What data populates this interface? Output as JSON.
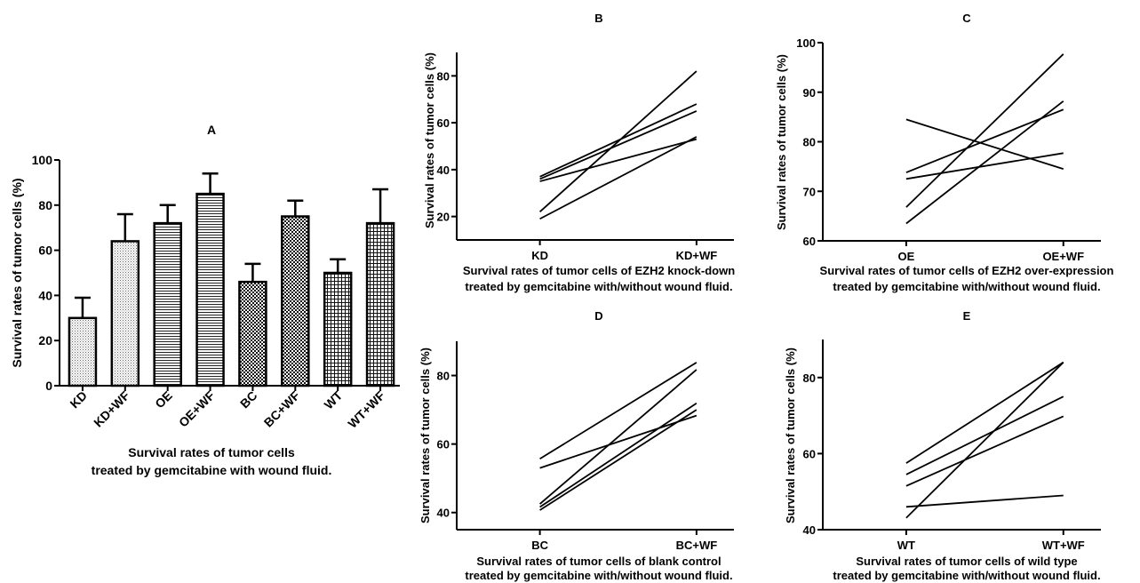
{
  "chart_data": [
    {
      "panel": "A",
      "type": "bar",
      "title": "A",
      "xlabel_lines": [
        "Survival rates of tumor cells",
        "treated by gemcitabine with wound fluid."
      ],
      "ylabel": "Survival rates of tumor cells (%)",
      "ylim": [
        0,
        100
      ],
      "yticks": [
        0,
        20,
        40,
        60,
        80,
        100
      ],
      "categories": [
        "KD",
        "KD+WF",
        "OE",
        "OE+WF",
        "BC",
        "BC+WF",
        "WT",
        "WT+WF"
      ],
      "values": [
        30,
        64,
        72,
        85,
        46,
        75,
        50,
        72
      ],
      "errors": [
        9,
        12,
        8,
        9,
        8,
        7,
        6,
        15
      ],
      "patterns": [
        "dots",
        "dots",
        "hlines",
        "hlines",
        "checker",
        "checker",
        "grid",
        "grid"
      ],
      "grid": false
    },
    {
      "panel": "B",
      "type": "line",
      "title": "B",
      "xlabel_lines": [
        "Survival rates of tumor cells of EZH2 knock-down",
        "treated by gemcitabine with/without wound fluid."
      ],
      "ylabel": "Survival rates of tumor cells (%)",
      "categories": [
        "KD",
        "KD+WF"
      ],
      "ylim": [
        10,
        90
      ],
      "yticks": [
        20,
        40,
        60,
        80
      ],
      "series": [
        {
          "values": [
            37,
            68
          ]
        },
        {
          "values": [
            36,
            65
          ]
        },
        {
          "values": [
            35,
            53
          ]
        },
        {
          "values": [
            22,
            82
          ]
        },
        {
          "values": [
            19,
            54
          ]
        }
      ],
      "grid": false
    },
    {
      "panel": "C",
      "type": "line",
      "title": "C",
      "xlabel_lines": [
        "Survival rates of tumor cells of EZH2 over-expression",
        "treated by gemcitabine with/without wound fluid."
      ],
      "ylabel": "Survival rates of tumor cells (%)",
      "categories": [
        "OE",
        "OE+WF"
      ],
      "ylim": [
        60,
        100
      ],
      "yticks": [
        60,
        70,
        80,
        90,
        100
      ],
      "series": [
        {
          "values": [
            84.5,
            74.5
          ]
        },
        {
          "values": [
            73.8,
            86.5
          ]
        },
        {
          "values": [
            72.5,
            77.7
          ]
        },
        {
          "values": [
            66.8,
            97.7
          ]
        },
        {
          "values": [
            63.5,
            88.2
          ]
        }
      ],
      "grid": false
    },
    {
      "panel": "D",
      "type": "line",
      "title": "D",
      "xlabel_lines": [
        "Survival rates of tumor cells of blank control",
        "treated by gemcitabine with/without wound fluid."
      ],
      "ylabel": "Survival rates of tumor cells (%)",
      "categories": [
        "BC",
        "BC+WF"
      ],
      "ylim": [
        35,
        90
      ],
      "yticks": [
        40,
        60,
        80
      ],
      "series": [
        {
          "values": [
            55.7,
            83.8
          ]
        },
        {
          "values": [
            53,
            68.3
          ]
        },
        {
          "values": [
            42.5,
            81.7
          ]
        },
        {
          "values": [
            41.6,
            71.9
          ]
        },
        {
          "values": [
            40.7,
            70
          ]
        }
      ],
      "grid": false
    },
    {
      "panel": "E",
      "type": "line",
      "title": "E",
      "xlabel_lines": [
        "Survival rates of tumor cells of wild type",
        "treated by gemcitabine with/without wound fluid."
      ],
      "ylabel": "Survival rates of tumor cells (%)",
      "categories": [
        "WT",
        "WT+WF"
      ],
      "ylim": [
        40,
        90
      ],
      "yticks": [
        40,
        60,
        80
      ],
      "series": [
        {
          "values": [
            57.5,
            84
          ]
        },
        {
          "values": [
            54.5,
            75
          ]
        },
        {
          "values": [
            51.5,
            69.8
          ]
        },
        {
          "values": [
            46,
            49
          ]
        },
        {
          "values": [
            43.1,
            84
          ]
        }
      ],
      "grid": false
    }
  ]
}
